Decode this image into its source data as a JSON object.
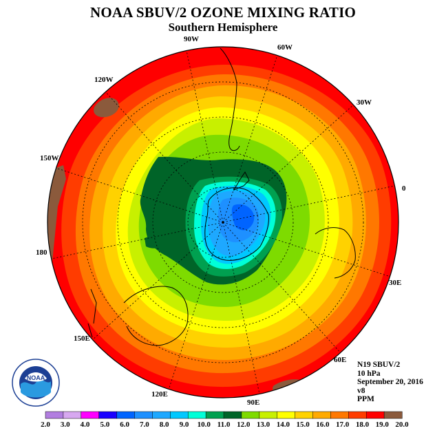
{
  "title": "NOAA SBUV/2 OZONE MIXING RATIO",
  "subtitle": "Southern Hemisphere",
  "longitude_labels": [
    "90W",
    "60W",
    "30W",
    "0",
    "30E",
    "60E",
    "90E",
    "120E",
    "150E",
    "180",
    "150W",
    "120W"
  ],
  "info": {
    "satellite": "N19 SBUV/2",
    "level": "10 hPa",
    "date": "September 20, 2016",
    "version": "v8",
    "units": "PPM"
  },
  "logo": {
    "text": "NOAA",
    "ring_text": "NATIONAL OCEANIC AND ATMOSPHERIC ADMINISTRATION · U.S. DEPARTMENT OF COMMERCE"
  },
  "colorbar": {
    "ticks": [
      "2.0",
      "3.0",
      "4.0",
      "5.0",
      "6.0",
      "7.0",
      "8.0",
      "9.0",
      "10.0",
      "11.0",
      "12.0",
      "13.0",
      "14.0",
      "15.0",
      "16.0",
      "17.0",
      "18.0",
      "19.0",
      "20.0"
    ],
    "colors": [
      "#b27ee0",
      "#d7a8f0",
      "#ff00ff",
      "#1a00ff",
      "#0064ff",
      "#1e90ff",
      "#1ea8ff",
      "#00c8ff",
      "#00ffd8",
      "#00a050",
      "#006428",
      "#7edb00",
      "#c8f000",
      "#ffff00",
      "#ffd200",
      "#ffaa00",
      "#ff7800",
      "#ff3c00",
      "#ff0000",
      "#8b5a3c"
    ]
  },
  "colors": {
    "continent_outline": "#000000",
    "grid": "#000000"
  }
}
